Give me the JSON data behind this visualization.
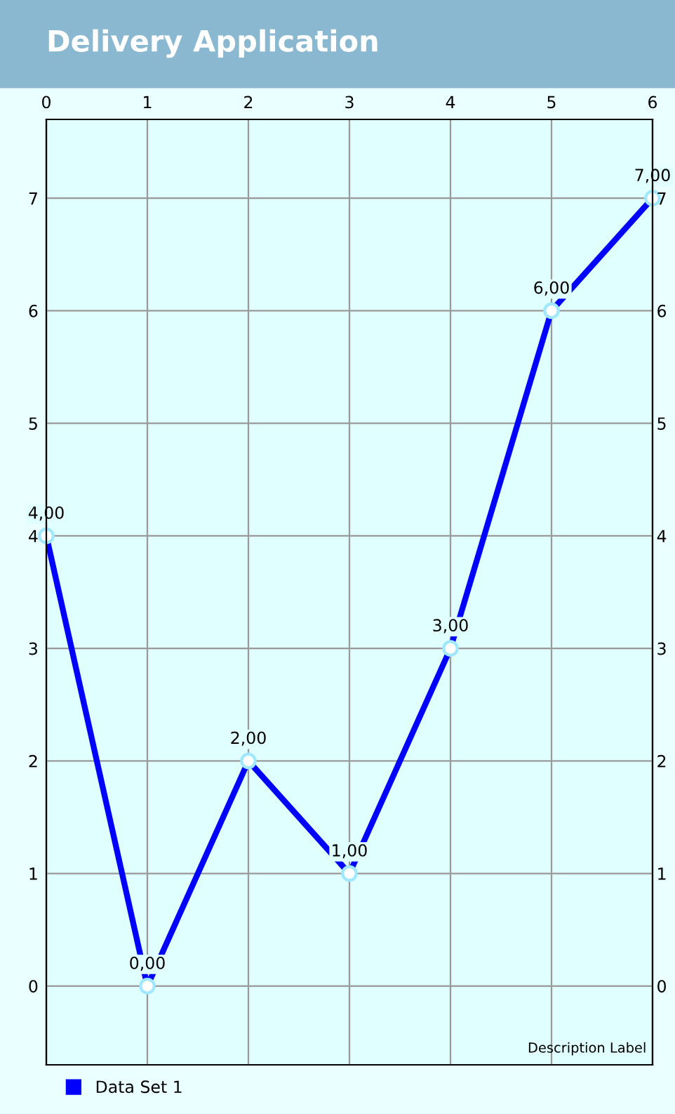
{
  "chart_data": {
    "type": "line",
    "title": "Delivery Application",
    "x": [
      0,
      1,
      2,
      3,
      4,
      5,
      6
    ],
    "series": [
      {
        "name": "Data Set 1",
        "color": "#0000ff",
        "values": [
          4,
          0,
          2,
          1,
          3,
          6,
          7
        ],
        "value_labels": [
          "4,00",
          "0,00",
          "2,00",
          "1,00",
          "3,00",
          "6,00",
          "7,00"
        ]
      }
    ],
    "xlim": [
      0,
      6
    ],
    "xticks": [
      0,
      1,
      2,
      3,
      4,
      5,
      6
    ],
    "ylim": [
      -0.7,
      7.7
    ],
    "yticks": [
      0,
      1,
      2,
      3,
      4,
      5,
      6,
      7
    ],
    "y2lim": [
      -0.7,
      7.7
    ],
    "y2ticks": [
      0,
      1,
      2,
      3,
      4,
      5,
      6,
      7
    ],
    "annotations": [
      "Description Label"
    ],
    "grid": true,
    "legend": "bottom left",
    "marker": "circle",
    "line_style": "solid"
  }
}
